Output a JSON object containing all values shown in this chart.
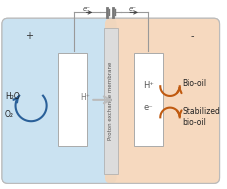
{
  "fig_width": 2.28,
  "fig_height": 1.89,
  "dpi": 100,
  "bg_left_color": "#c5dff0",
  "bg_right_color": "#f5d5b8",
  "membrane_color": "#dcdcdc",
  "membrane_text": "Proton exchange membrane",
  "left_label_plus": "+",
  "right_label_minus": "-",
  "left_texts": [
    "H₂O",
    "O₂"
  ],
  "right_text_biooil": "Bio-oil",
  "right_text_stabilized": "Stabilized\nbio-oil",
  "center_left_text": "H⁺",
  "center_right_top": "H⁺",
  "center_right_bot": "e⁻",
  "top_left_arrow": "e⁻",
  "top_right_arrow": "e⁻",
  "blue_arrow_color": "#2a6099",
  "orange_arrow_color": "#c05a10",
  "wire_color": "#999999",
  "text_color": "#444444"
}
